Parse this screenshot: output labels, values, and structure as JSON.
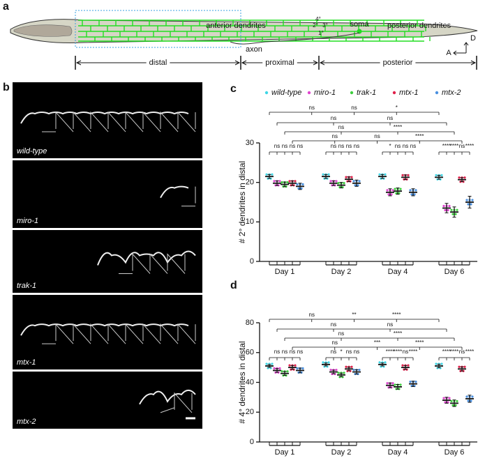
{
  "figure": {
    "panel_a": {
      "letter": "a",
      "labels": {
        "anterior_dendrites": "anterior dendrites",
        "quaternary": "4°",
        "secondary": "2°",
        "tertiary": "3°",
        "primary": "1°",
        "soma": "soma",
        "posterior_dendrites": "posterior dendrites",
        "axon": "axon",
        "dorsal": "D",
        "anterior": "A"
      },
      "regions": [
        "distal",
        "proximal",
        "posterior"
      ]
    },
    "panel_b": {
      "letter": "b",
      "strains": [
        "wild-type",
        "miro-1",
        "trak-1",
        "mtx-1",
        "mtx-2"
      ]
    }
  },
  "chart_data": [
    {
      "type": "dot",
      "panel": "c",
      "ylabel": "# 2° dendrites in distal",
      "categories": [
        "Day 1",
        "Day 2",
        "Day 4",
        "Day 6"
      ],
      "series": [
        {
          "name": "wild-type",
          "color": "#3fd6e6",
          "values": [
            21.5,
            21.5,
            21.5,
            21.3
          ],
          "errors": [
            0.5,
            0.5,
            0.5,
            0.5
          ]
        },
        {
          "name": "miro-1",
          "color": "#e045cf",
          "values": [
            19.8,
            19.8,
            17.5,
            13.5
          ],
          "errors": [
            0.6,
            0.6,
            0.9,
            1.2
          ]
        },
        {
          "name": "trak-1",
          "color": "#3fcf3f",
          "values": [
            19.5,
            19.3,
            17.8,
            12.5
          ],
          "errors": [
            0.6,
            0.7,
            0.8,
            1.3
          ]
        },
        {
          "name": "mtx-1",
          "color": "#e0204a",
          "values": [
            19.8,
            20.8,
            21.3,
            20.7
          ],
          "errors": [
            0.6,
            0.6,
            0.6,
            0.5
          ]
        },
        {
          "name": "mtx-2",
          "color": "#4a90e0",
          "values": [
            19.0,
            19.8,
            17.5,
            15.0
          ],
          "errors": [
            0.8,
            0.8,
            0.9,
            1.5
          ]
        }
      ],
      "ylim": [
        0,
        30
      ],
      "yticks": [
        0,
        10,
        20,
        30
      ],
      "comparisons": {
        "across_days": [
          [
            "ns",
            "ns",
            "*"
          ],
          [
            "ns",
            "ns"
          ],
          [
            "ns",
            "****"
          ],
          [
            "ns",
            "ns",
            "****"
          ]
        ],
        "within_days": [
          [
            "ns",
            "ns",
            "ns",
            "ns"
          ],
          [
            "ns",
            "ns",
            "ns",
            "ns"
          ],
          [
            "*",
            "ns",
            "ns",
            "ns"
          ],
          [
            "****",
            "****",
            "ns",
            "****"
          ]
        ]
      }
    },
    {
      "type": "dot",
      "panel": "d",
      "ylabel": "# 4° dendrites in distal",
      "categories": [
        "Day 1",
        "Day 2",
        "Day 4",
        "Day 6"
      ],
      "series": [
        {
          "name": "wild-type",
          "color": "#3fd6e6",
          "values": [
            51,
            52,
            52,
            51
          ],
          "errors": [
            1.0,
            1.0,
            1.0,
            1.2
          ]
        },
        {
          "name": "miro-1",
          "color": "#e045cf",
          "values": [
            48,
            47,
            38,
            28
          ],
          "errors": [
            1.3,
            1.2,
            1.6,
            2.0
          ]
        },
        {
          "name": "trak-1",
          "color": "#3fcf3f",
          "values": [
            46,
            45,
            37,
            26
          ],
          "errors": [
            1.3,
            1.2,
            1.6,
            2.2
          ]
        },
        {
          "name": "mtx-1",
          "color": "#e0204a",
          "values": [
            50,
            49,
            50,
            49
          ],
          "errors": [
            1.3,
            1.2,
            1.3,
            1.4
          ]
        },
        {
          "name": "mtx-2",
          "color": "#4a90e0",
          "values": [
            48,
            47,
            39,
            29
          ],
          "errors": [
            1.6,
            1.5,
            1.8,
            2.4
          ]
        }
      ],
      "ylim": [
        0,
        80
      ],
      "yticks": [
        0,
        20,
        40,
        60,
        80
      ],
      "comparisons": {
        "across_days": [
          [
            "ns",
            "**",
            "****"
          ],
          [
            "ns",
            "ns"
          ],
          [
            "ns",
            "****"
          ],
          [
            "ns",
            "***",
            "****"
          ]
        ],
        "within_days": [
          [
            "ns",
            "ns",
            "ns",
            "ns"
          ],
          [
            "ns",
            "*",
            "ns",
            "ns"
          ],
          [
            "****",
            "****",
            "ns",
            "****"
          ],
          [
            "****",
            "****",
            "ns",
            "****"
          ]
        ]
      }
    }
  ]
}
